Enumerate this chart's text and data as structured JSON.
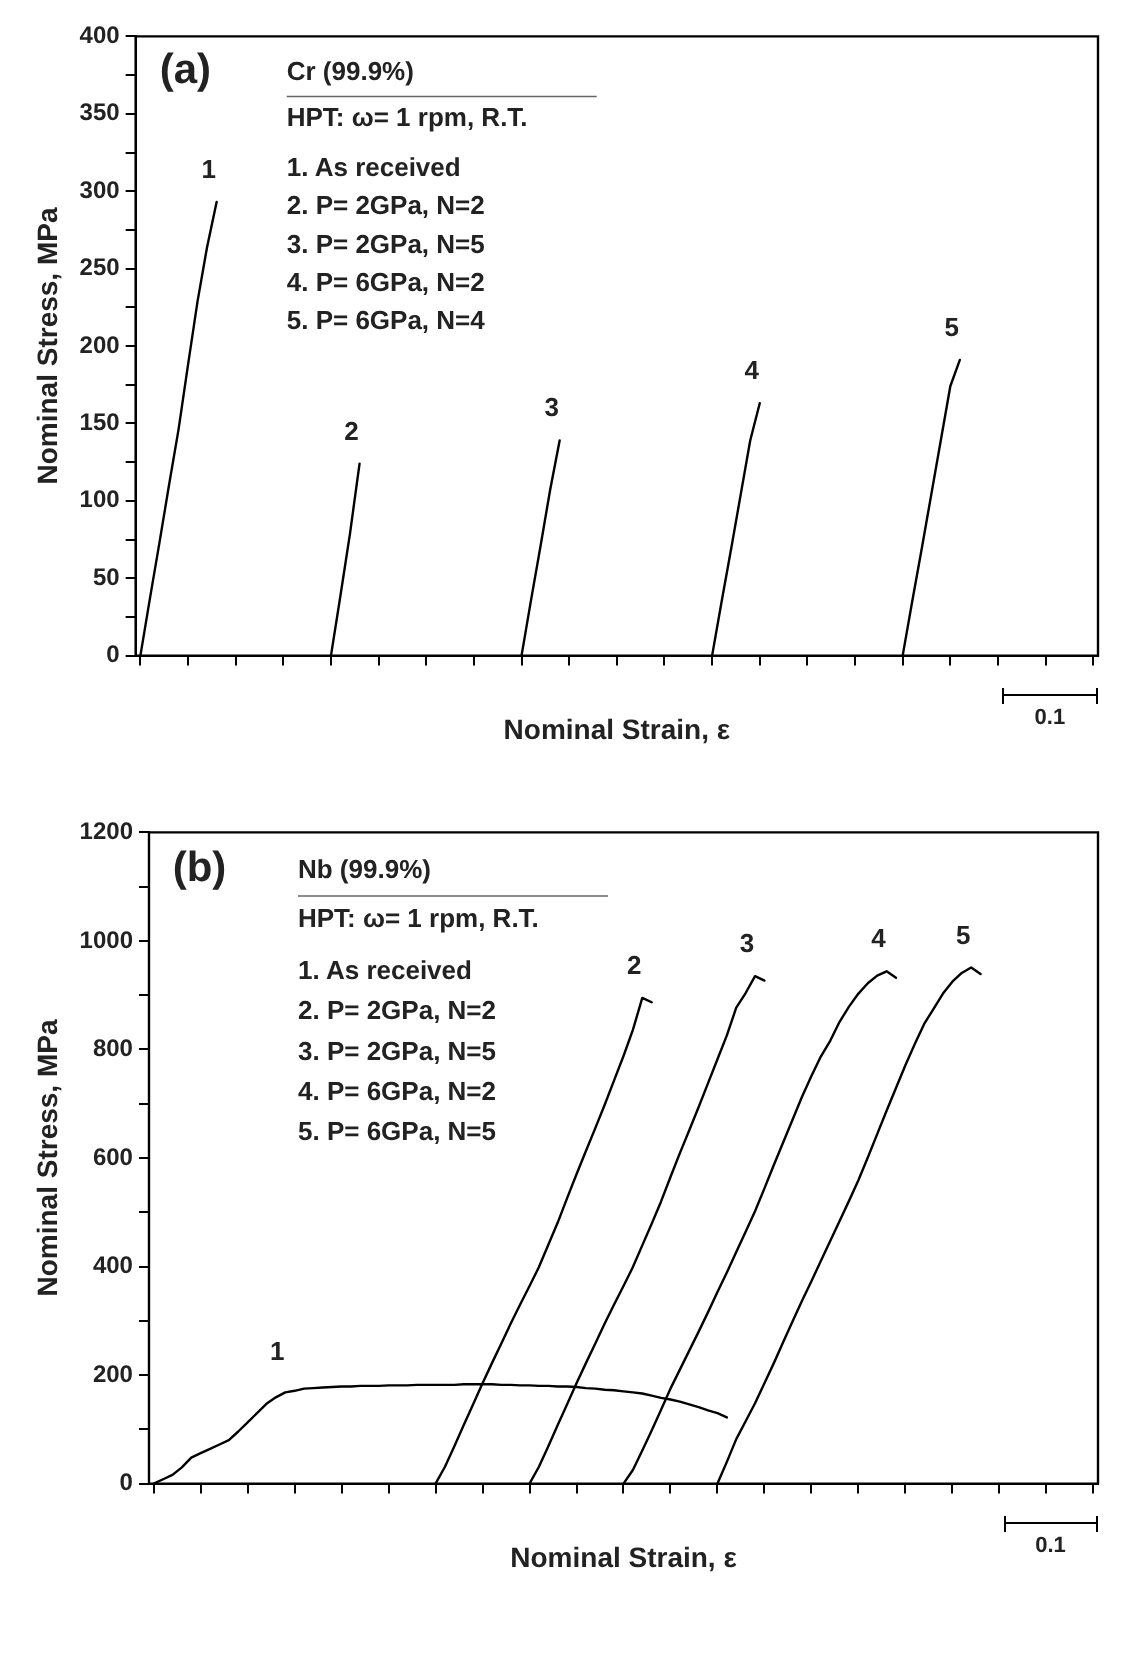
{
  "chart_data": [
    {
      "type": "line",
      "title": "(a)",
      "subtitle": "Cr (99.9%)",
      "xlabel": "Nominal Strain, ε",
      "ylabel": "Nominal Stress, MPa",
      "annotations": [
        "HPT: ω= 1 rpm, R.T.",
        "1. As received",
        "2. P= 2GPa, N=2",
        "3. P= 2GPa, N=5",
        "4. P= 6GPa, N=2",
        "5. P= 6GPa, N=4",
        "0.1"
      ],
      "categories": [
        null,
        null,
        null,
        null,
        null,
        null,
        null,
        null,
        null,
        null,
        null,
        null,
        null,
        null,
        null,
        null,
        null,
        null,
        null,
        null,
        null,
        null,
        null,
        null,
        null,
        null,
        null,
        null,
        null,
        null,
        null,
        null,
        null,
        null,
        null,
        null,
        null,
        null,
        null,
        null,
        null,
        null,
        null,
        null,
        null,
        null,
        null,
        null,
        null,
        null,
        null,
        null,
        null,
        null,
        null,
        null,
        null,
        null,
        null,
        null,
        null,
        null,
        null,
        null,
        null,
        null,
        null,
        null,
        null,
        null,
        null,
        null,
        null,
        null,
        null,
        null,
        null,
        null,
        null,
        null,
        null,
        null,
        null,
        null,
        null,
        null,
        null,
        null,
        null,
        null,
        null,
        null,
        null,
        null,
        null,
        null,
        null,
        null,
        null,
        null,
        null
      ],
      "series": [
        {
          "name": "1",
          "color": "#000000",
          "values": [
            0,
            37,
            73,
            110,
            146,
            188,
            229,
            264,
            293,
            null,
            null,
            null,
            null,
            null,
            null,
            null,
            null,
            null,
            null,
            null,
            null,
            null,
            null,
            null,
            null,
            null,
            null,
            null,
            null,
            null,
            null,
            null,
            null,
            null,
            null,
            null,
            null,
            null,
            null,
            null,
            null,
            null,
            null,
            null,
            null,
            null,
            null,
            null,
            null,
            null,
            null,
            null,
            null,
            null,
            null,
            null,
            null,
            null,
            null,
            null,
            null,
            null,
            null,
            null,
            null,
            null,
            null,
            null,
            null,
            null,
            null,
            null,
            null,
            null,
            null,
            null,
            null,
            null,
            null,
            null,
            null,
            null,
            null,
            null,
            null,
            null,
            null,
            null,
            null,
            null,
            null,
            null,
            null,
            null,
            null,
            null,
            null,
            null,
            null,
            null,
            null
          ]
        },
        {
          "name": "2",
          "color": "#000000",
          "values": [
            null,
            null,
            null,
            null,
            null,
            null,
            null,
            null,
            null,
            null,
            null,
            null,
            null,
            null,
            null,
            null,
            null,
            null,
            null,
            null,
            0,
            39,
            79,
            124,
            null,
            null,
            null,
            null,
            null,
            null,
            null,
            null,
            null,
            null,
            null,
            null,
            null,
            null,
            null,
            null,
            null,
            null,
            null,
            null,
            null,
            null,
            null,
            null,
            null,
            null,
            null,
            null,
            null,
            null,
            null,
            null,
            null,
            null,
            null,
            null,
            null,
            null,
            null,
            null,
            null,
            null,
            null,
            null,
            null,
            null,
            null,
            null,
            null,
            null,
            null,
            null,
            null,
            null,
            null,
            null,
            null,
            null,
            null,
            null,
            null,
            null,
            null,
            null,
            null,
            null,
            null,
            null,
            null,
            null,
            null,
            null,
            null,
            null,
            null,
            null,
            null
          ]
        },
        {
          "name": "3",
          "color": "#000000",
          "values": [
            null,
            null,
            null,
            null,
            null,
            null,
            null,
            null,
            null,
            null,
            null,
            null,
            null,
            null,
            null,
            null,
            null,
            null,
            null,
            null,
            null,
            null,
            null,
            null,
            null,
            null,
            null,
            null,
            null,
            null,
            null,
            null,
            null,
            null,
            null,
            null,
            null,
            null,
            null,
            null,
            0,
            36,
            71,
            107,
            139,
            null,
            null,
            null,
            null,
            null,
            null,
            null,
            null,
            null,
            null,
            null,
            null,
            null,
            null,
            null,
            null,
            null,
            null,
            null,
            null,
            null,
            null,
            null,
            null,
            null,
            null,
            null,
            null,
            null,
            null,
            null,
            null,
            null,
            null,
            null,
            null,
            null,
            null,
            null,
            null,
            null,
            null,
            null,
            null,
            null,
            null,
            null,
            null,
            null,
            null,
            null,
            null,
            null,
            null,
            null,
            null
          ]
        },
        {
          "name": "4",
          "color": "#000000",
          "values": [
            null,
            null,
            null,
            null,
            null,
            null,
            null,
            null,
            null,
            null,
            null,
            null,
            null,
            null,
            null,
            null,
            null,
            null,
            null,
            null,
            null,
            null,
            null,
            null,
            null,
            null,
            null,
            null,
            null,
            null,
            null,
            null,
            null,
            null,
            null,
            null,
            null,
            null,
            null,
            null,
            null,
            null,
            null,
            null,
            null,
            null,
            null,
            null,
            null,
            null,
            null,
            null,
            null,
            null,
            null,
            null,
            null,
            null,
            null,
            null,
            0,
            35,
            69,
            104,
            139,
            163,
            null,
            null,
            null,
            null,
            null,
            null,
            null,
            null,
            null,
            null,
            null,
            null,
            null,
            null,
            null,
            null,
            null,
            null,
            null,
            null,
            null,
            null,
            null,
            null,
            null,
            null,
            null,
            null,
            null,
            null,
            null,
            null,
            null,
            null,
            null
          ]
        },
        {
          "name": "5",
          "color": "#000000",
          "values": [
            null,
            null,
            null,
            null,
            null,
            null,
            null,
            null,
            null,
            null,
            null,
            null,
            null,
            null,
            null,
            null,
            null,
            null,
            null,
            null,
            null,
            null,
            null,
            null,
            null,
            null,
            null,
            null,
            null,
            null,
            null,
            null,
            null,
            null,
            null,
            null,
            null,
            null,
            null,
            null,
            null,
            null,
            null,
            null,
            null,
            null,
            null,
            null,
            null,
            null,
            null,
            null,
            null,
            null,
            null,
            null,
            null,
            null,
            null,
            null,
            null,
            null,
            null,
            null,
            null,
            null,
            null,
            null,
            null,
            null,
            null,
            null,
            null,
            null,
            null,
            null,
            null,
            null,
            null,
            null,
            0,
            35,
            69,
            104,
            139,
            174,
            191,
            null,
            null,
            null,
            null,
            null,
            null,
            null,
            null,
            null,
            null,
            null,
            null,
            null,
            null
          ]
        }
      ],
      "ylim": [
        0,
        400
      ],
      "yticks": [
        0,
        {
          "value": 25,
          "label": null
        },
        50,
        {
          "value": 75,
          "label": null
        },
        100,
        {
          "value": 125,
          "label": null
        },
        150,
        {
          "value": 175,
          "label": null
        },
        200,
        {
          "value": 225,
          "label": null
        },
        250,
        {
          "value": 275,
          "label": null
        },
        300,
        {
          "value": 325,
          "label": null
        },
        350,
        {
          "value": 375,
          "label": null
        },
        400
      ],
      "tick_labels": "y",
      "grid": false,
      "legend": false,
      "marker": "none",
      "line_style": "solid"
    },
    {
      "type": "line",
      "title": "(b)",
      "subtitle": "Nb (99.9%)",
      "xlabel": "Nominal Strain, ε",
      "ylabel": "Nominal Stress, MPa",
      "annotations": [
        "HPT: ω= 1 rpm, R.T.",
        "1. As received",
        "2. P= 2GPa, N=2",
        "3. P= 2GPa, N=5",
        "4. P= 6GPa, N=2",
        "5. P= 6GPa, N=5",
        "0.1"
      ],
      "categories": [
        null,
        null,
        null,
        null,
        null,
        null,
        null,
        null,
        null,
        null,
        null,
        null,
        null,
        null,
        null,
        null,
        null,
        null,
        null,
        null,
        null,
        null,
        null,
        null,
        null,
        null,
        null,
        null,
        null,
        null,
        null,
        null,
        null,
        null,
        null,
        null,
        null,
        null,
        null,
        null,
        null,
        null,
        null,
        null,
        null,
        null,
        null,
        null,
        null,
        null,
        null,
        null,
        null,
        null,
        null,
        null,
        null,
        null,
        null,
        null,
        null,
        null,
        null,
        null,
        null,
        null,
        null,
        null,
        null,
        null,
        null,
        null,
        null,
        null,
        null,
        null,
        null,
        null,
        null,
        null,
        null,
        null,
        null,
        null,
        null,
        null,
        null,
        null,
        null,
        null,
        null,
        null,
        null,
        null,
        null,
        null,
        null,
        null,
        null,
        null,
        null
      ],
      "series": [
        {
          "name": "1",
          "color": "#000000",
          "values": [
            0,
            8,
            16,
            30,
            48,
            56,
            64,
            72,
            80,
            96,
            113,
            130,
            147,
            159,
            168,
            171,
            175,
            176,
            177,
            178,
            179,
            179,
            180,
            180,
            180,
            181,
            181,
            181,
            182,
            182,
            182,
            182,
            182,
            183,
            183,
            183,
            183,
            182,
            182,
            181,
            181,
            180,
            180,
            179,
            179,
            178,
            176,
            175,
            173,
            172,
            170,
            168,
            166,
            162,
            158,
            155,
            151,
            146,
            141,
            135,
            130,
            122,
            null,
            null,
            null,
            null,
            null,
            null,
            null,
            null,
            null,
            null,
            null,
            null,
            null,
            null,
            null,
            null,
            null,
            null,
            null,
            null,
            null,
            null,
            null,
            null,
            null,
            null,
            null,
            null,
            null,
            null,
            null,
            null,
            null,
            null,
            null,
            null,
            null,
            null,
            null
          ]
        },
        {
          "name": "2",
          "color": "#000000",
          "values": [
            null,
            null,
            null,
            null,
            null,
            null,
            null,
            null,
            null,
            null,
            null,
            null,
            null,
            null,
            null,
            null,
            null,
            null,
            null,
            null,
            null,
            null,
            null,
            null,
            null,
            null,
            null,
            null,
            null,
            null,
            0,
            31,
            69,
            108,
            146,
            185,
            222,
            258,
            295,
            330,
            364,
            399,
            440,
            481,
            526,
            570,
            613,
            655,
            698,
            743,
            788,
            836,
            895,
            887,
            null,
            null,
            null,
            null,
            null,
            null,
            null,
            null,
            null,
            null,
            null,
            null,
            null,
            null,
            null,
            null,
            null,
            null,
            null,
            null,
            null,
            null,
            null,
            null,
            null,
            null,
            null,
            null,
            null,
            null,
            null,
            null,
            null,
            null,
            null,
            null,
            null,
            null,
            null,
            null,
            null,
            null,
            null,
            null,
            null,
            null,
            null
          ]
        },
        {
          "name": "3",
          "color": "#000000",
          "values": [
            null,
            null,
            null,
            null,
            null,
            null,
            null,
            null,
            null,
            null,
            null,
            null,
            null,
            null,
            null,
            null,
            null,
            null,
            null,
            null,
            null,
            null,
            null,
            null,
            null,
            null,
            null,
            null,
            null,
            null,
            null,
            null,
            null,
            null,
            null,
            null,
            null,
            null,
            null,
            null,
            0,
            31,
            69,
            108,
            146,
            185,
            222,
            258,
            295,
            330,
            364,
            399,
            439,
            479,
            520,
            565,
            609,
            651,
            694,
            738,
            782,
            826,
            877,
            904,
            935,
            927,
            null,
            null,
            null,
            null,
            null,
            null,
            null,
            null,
            null,
            null,
            null,
            null,
            null,
            null,
            null,
            null,
            null,
            null,
            null,
            null,
            null,
            null,
            null,
            null,
            null,
            null,
            null,
            null,
            null,
            null,
            null,
            null,
            null,
            null,
            null
          ]
        },
        {
          "name": "4",
          "color": "#000000",
          "values": [
            null,
            null,
            null,
            null,
            null,
            null,
            null,
            null,
            null,
            null,
            null,
            null,
            null,
            null,
            null,
            null,
            null,
            null,
            null,
            null,
            null,
            null,
            null,
            null,
            null,
            null,
            null,
            null,
            null,
            null,
            null,
            null,
            null,
            null,
            null,
            null,
            null,
            null,
            null,
            null,
            null,
            null,
            null,
            null,
            null,
            null,
            null,
            null,
            null,
            null,
            0,
            25,
            61,
            98,
            136,
            175,
            210,
            245,
            280,
            316,
            353,
            389,
            427,
            464,
            502,
            544,
            587,
            629,
            671,
            713,
            751,
            787,
            816,
            851,
            879,
            903,
            922,
            936,
            944,
            932,
            null,
            null,
            null,
            null,
            null,
            null,
            null,
            null,
            null,
            null,
            null,
            null,
            null,
            null,
            null,
            null,
            null,
            null,
            null,
            null,
            null
          ]
        },
        {
          "name": "5",
          "color": "#000000",
          "values": [
            null,
            null,
            null,
            null,
            null,
            null,
            null,
            null,
            null,
            null,
            null,
            null,
            null,
            null,
            null,
            null,
            null,
            null,
            null,
            null,
            null,
            null,
            null,
            null,
            null,
            null,
            null,
            null,
            null,
            null,
            null,
            null,
            null,
            null,
            null,
            null,
            null,
            null,
            null,
            null,
            null,
            null,
            null,
            null,
            null,
            null,
            null,
            null,
            null,
            null,
            null,
            null,
            null,
            null,
            null,
            null,
            null,
            null,
            null,
            null,
            0,
            40,
            82,
            115,
            148,
            185,
            222,
            261,
            299,
            337,
            373,
            410,
            447,
            484,
            521,
            559,
            601,
            644,
            687,
            729,
            771,
            810,
            847,
            875,
            903,
            925,
            941,
            951,
            939,
            null,
            null,
            null,
            null,
            null,
            null,
            null,
            null,
            null,
            null,
            null,
            null
          ]
        }
      ],
      "ylim": [
        0,
        1200
      ],
      "yticks": [
        0,
        {
          "value": 100,
          "label": null
        },
        200,
        {
          "value": 300,
          "label": null
        },
        400,
        {
          "value": 500,
          "label": null
        },
        600,
        {
          "value": 700,
          "label": null
        },
        800,
        {
          "value": 900,
          "label": null
        },
        1000,
        {
          "value": 1100,
          "label": null
        },
        1200
      ],
      "tick_labels": "y",
      "grid": false,
      "legend": false,
      "marker": "none",
      "line_style": "solid"
    }
  ]
}
